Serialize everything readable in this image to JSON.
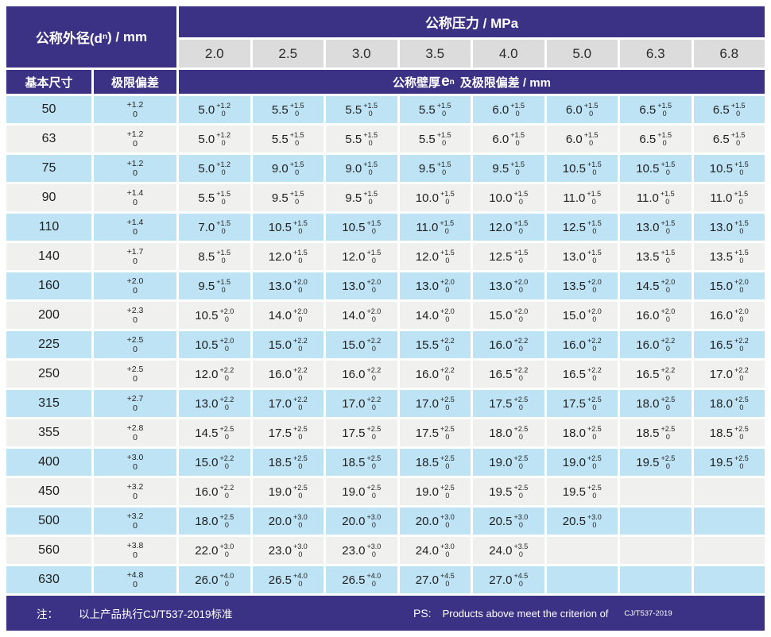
{
  "colors": {
    "header_purple": "#3b3286",
    "row_blue": "#bee3f5",
    "row_gray": "#f0f0ef",
    "pressure_chip_gray": "#dcdcdc",
    "text_dark": "#1f1f1f",
    "text_white": "#ffffff"
  },
  "table": {
    "header": {
      "od_prefix": "公称外径(d",
      "od_sub": "n",
      "od_suffix": ") / mm",
      "pressure_label": "公称压力 / MPa",
      "pressures": [
        "2.0",
        "2.5",
        "3.0",
        "3.5",
        "4.0",
        "5.0",
        "6.3",
        "6.8"
      ],
      "basic_size_label": "基本尺寸",
      "tolerance_label": "极限偏差",
      "wall_prefix": "公称壁厚",
      "wall_e": "e",
      "wall_sub": "n",
      "wall_suffix": "及极限偏差 / mm"
    },
    "rows": [
      {
        "dn": "50",
        "tol_plus": "+1.2",
        "tol_minus": "0",
        "cells": [
          {
            "v": "5.0",
            "p": "+1.2",
            "m": "0"
          },
          {
            "v": "5.5",
            "p": "+1.5",
            "m": "0"
          },
          {
            "v": "5.5",
            "p": "+1.5",
            "m": "0"
          },
          {
            "v": "5.5",
            "p": "+1.5",
            "m": "0"
          },
          {
            "v": "6.0",
            "p": "+1.5",
            "m": "0"
          },
          {
            "v": "6.0",
            "p": "+1.5",
            "m": "0"
          },
          {
            "v": "6.5",
            "p": "+1.5",
            "m": "0"
          },
          {
            "v": "6.5",
            "p": "+1.5",
            "m": "0"
          }
        ]
      },
      {
        "dn": "63",
        "tol_plus": "+1.2",
        "tol_minus": "0",
        "cells": [
          {
            "v": "5.0",
            "p": "+1.2",
            "m": "0"
          },
          {
            "v": "5.5",
            "p": "+1.5",
            "m": "0"
          },
          {
            "v": "5.5",
            "p": "+1.5",
            "m": "0"
          },
          {
            "v": "5.5",
            "p": "+1.5",
            "m": "0"
          },
          {
            "v": "6.0",
            "p": "+1.5",
            "m": "0"
          },
          {
            "v": "6.0",
            "p": "+1.5",
            "m": "0"
          },
          {
            "v": "6.5",
            "p": "+1.5",
            "m": "0"
          },
          {
            "v": "6.5",
            "p": "+1.5",
            "m": "0"
          }
        ]
      },
      {
        "dn": "75",
        "tol_plus": "+1.2",
        "tol_minus": "0",
        "cells": [
          {
            "v": "5.0",
            "p": "+1.2",
            "m": "0"
          },
          {
            "v": "9.0",
            "p": "+1.5",
            "m": "0"
          },
          {
            "v": "9.0",
            "p": "+1.5",
            "m": "0"
          },
          {
            "v": "9.5",
            "p": "+1.5",
            "m": "0"
          },
          {
            "v": "9.5",
            "p": "+1.5",
            "m": "0"
          },
          {
            "v": "10.5",
            "p": "+1.5",
            "m": "0"
          },
          {
            "v": "10.5",
            "p": "+1.5",
            "m": "0"
          },
          {
            "v": "10.5",
            "p": "+1.5",
            "m": "0"
          }
        ]
      },
      {
        "dn": "90",
        "tol_plus": "+1.4",
        "tol_minus": "0",
        "cells": [
          {
            "v": "5.5",
            "p": "+1.5",
            "m": "0"
          },
          {
            "v": "9.5",
            "p": "+1.5",
            "m": "0"
          },
          {
            "v": "9.5",
            "p": "+1.5",
            "m": "0"
          },
          {
            "v": "10.0",
            "p": "+1.5",
            "m": "0"
          },
          {
            "v": "10.0",
            "p": "+1.5",
            "m": "0"
          },
          {
            "v": "11.0",
            "p": "+1.5",
            "m": "0"
          },
          {
            "v": "11.0",
            "p": "+1.5",
            "m": "0"
          },
          {
            "v": "11.0",
            "p": "+1.5",
            "m": "0"
          }
        ]
      },
      {
        "dn": "110",
        "tol_plus": "+1.4",
        "tol_minus": "0",
        "cells": [
          {
            "v": "7.0",
            "p": "+1.5",
            "m": "0"
          },
          {
            "v": "10.5",
            "p": "+1.5",
            "m": "0"
          },
          {
            "v": "10.5",
            "p": "+1.5",
            "m": "0"
          },
          {
            "v": "11.0",
            "p": "+1.5",
            "m": "0"
          },
          {
            "v": "12.0",
            "p": "+1.5",
            "m": "0"
          },
          {
            "v": "12.5",
            "p": "+1.5",
            "m": "0"
          },
          {
            "v": "13.0",
            "p": "+1.5",
            "m": "0"
          },
          {
            "v": "13.0",
            "p": "+1.5",
            "m": "0"
          }
        ]
      },
      {
        "dn": "140",
        "tol_plus": "+1.7",
        "tol_minus": "0",
        "cells": [
          {
            "v": "8.5",
            "p": "+1.5",
            "m": "0"
          },
          {
            "v": "12.0",
            "p": "+1.5",
            "m": "0"
          },
          {
            "v": "12.0",
            "p": "+1.5",
            "m": "0"
          },
          {
            "v": "12.0",
            "p": "+1.5",
            "m": "0"
          },
          {
            "v": "12.5",
            "p": "+1.5",
            "m": "0"
          },
          {
            "v": "13.0",
            "p": "+1.5",
            "m": "0"
          },
          {
            "v": "13.5",
            "p": "+1.5",
            "m": "0"
          },
          {
            "v": "13.5",
            "p": "+1.5",
            "m": "0"
          }
        ]
      },
      {
        "dn": "160",
        "tol_plus": "+2.0",
        "tol_minus": "0",
        "cells": [
          {
            "v": "9.5",
            "p": "+1.5",
            "m": "0"
          },
          {
            "v": "13.0",
            "p": "+2.0",
            "m": "0"
          },
          {
            "v": "13.0",
            "p": "+2.0",
            "m": "0"
          },
          {
            "v": "13.0",
            "p": "+2.0",
            "m": "0"
          },
          {
            "v": "13.0",
            "p": "+2.0",
            "m": "0"
          },
          {
            "v": "13.5",
            "p": "+2.0",
            "m": "0"
          },
          {
            "v": "14.5",
            "p": "+2.0",
            "m": "0"
          },
          {
            "v": "15.0",
            "p": "+2.0",
            "m": "0"
          }
        ]
      },
      {
        "dn": "200",
        "tol_plus": "+2.3",
        "tol_minus": "0",
        "cells": [
          {
            "v": "10.5",
            "p": "+2.0",
            "m": "0"
          },
          {
            "v": "14.0",
            "p": "+2.0",
            "m": "0"
          },
          {
            "v": "14.0",
            "p": "+2.0",
            "m": "0"
          },
          {
            "v": "14.0",
            "p": "+2.0",
            "m": "0"
          },
          {
            "v": "15.0",
            "p": "+2.0",
            "m": "0"
          },
          {
            "v": "15.0",
            "p": "+2.0",
            "m": "0"
          },
          {
            "v": "16.0",
            "p": "+2.0",
            "m": "0"
          },
          {
            "v": "16.0",
            "p": "+2.0",
            "m": "0"
          }
        ]
      },
      {
        "dn": "225",
        "tol_plus": "+2.5",
        "tol_minus": "0",
        "cells": [
          {
            "v": "10.5",
            "p": "+2.0",
            "m": "0"
          },
          {
            "v": "15.0",
            "p": "+2.2",
            "m": "0"
          },
          {
            "v": "15.0",
            "p": "+2.2",
            "m": "0"
          },
          {
            "v": "15.5",
            "p": "+2.2",
            "m": "0"
          },
          {
            "v": "16.0",
            "p": "+2.2",
            "m": "0"
          },
          {
            "v": "16.0",
            "p": "+2.2",
            "m": "0"
          },
          {
            "v": "16.0",
            "p": "+2.2",
            "m": "0"
          },
          {
            "v": "16.5",
            "p": "+2.2",
            "m": "0"
          }
        ]
      },
      {
        "dn": "250",
        "tol_plus": "+2.5",
        "tol_minus": "0",
        "cells": [
          {
            "v": "12.0",
            "p": "+2.2",
            "m": "0"
          },
          {
            "v": "16.0",
            "p": "+2.2",
            "m": "0"
          },
          {
            "v": "16.0",
            "p": "+2.2",
            "m": "0"
          },
          {
            "v": "16.0",
            "p": "+2.2",
            "m": "0"
          },
          {
            "v": "16.5",
            "p": "+2.2",
            "m": "0"
          },
          {
            "v": "16.5",
            "p": "+2.2",
            "m": "0"
          },
          {
            "v": "16.5",
            "p": "+2.2",
            "m": "0"
          },
          {
            "v": "17.0",
            "p": "+2.2",
            "m": "0"
          }
        ]
      },
      {
        "dn": "315",
        "tol_plus": "+2.7",
        "tol_minus": "0",
        "cells": [
          {
            "v": "13.0",
            "p": "+2.2",
            "m": "0"
          },
          {
            "v": "17.0",
            "p": "+2.2",
            "m": "0"
          },
          {
            "v": "17.0",
            "p": "+2.2",
            "m": "0"
          },
          {
            "v": "17.0",
            "p": "+2.5",
            "m": "0"
          },
          {
            "v": "17.5",
            "p": "+2.5",
            "m": "0"
          },
          {
            "v": "17.5",
            "p": "+2.5",
            "m": "0"
          },
          {
            "v": "18.0",
            "p": "+2.5",
            "m": "0"
          },
          {
            "v": "18.0",
            "p": "+2.5",
            "m": "0"
          }
        ]
      },
      {
        "dn": "355",
        "tol_plus": "+2.8",
        "tol_minus": "0",
        "cells": [
          {
            "v": "14.5",
            "p": "+2.5",
            "m": "0"
          },
          {
            "v": "17.5",
            "p": "+2.5",
            "m": "0"
          },
          {
            "v": "17.5",
            "p": "+2.5",
            "m": "0"
          },
          {
            "v": "17.5",
            "p": "+2.5",
            "m": "0"
          },
          {
            "v": "18.0",
            "p": "+2.5",
            "m": "0"
          },
          {
            "v": "18.0",
            "p": "+2.5",
            "m": "0"
          },
          {
            "v": "18.5",
            "p": "+2.5",
            "m": "0"
          },
          {
            "v": "18.5",
            "p": "+2.5",
            "m": "0"
          }
        ]
      },
      {
        "dn": "400",
        "tol_plus": "+3.0",
        "tol_minus": "0",
        "cells": [
          {
            "v": "15.0",
            "p": "+2.2",
            "m": "0"
          },
          {
            "v": "18.5",
            "p": "+2.5",
            "m": "0"
          },
          {
            "v": "18.5",
            "p": "+2.5",
            "m": "0"
          },
          {
            "v": "18.5",
            "p": "+2.5",
            "m": "0"
          },
          {
            "v": "19.0",
            "p": "+2.5",
            "m": "0"
          },
          {
            "v": "19.0",
            "p": "+2.5",
            "m": "0"
          },
          {
            "v": "19.5",
            "p": "+2.5",
            "m": "0"
          },
          {
            "v": "19.5",
            "p": "+2.5",
            "m": "0"
          }
        ]
      },
      {
        "dn": "450",
        "tol_plus": "+3.2",
        "tol_minus": "0",
        "cells": [
          {
            "v": "16.0",
            "p": "+2.2",
            "m": "0"
          },
          {
            "v": "19.0",
            "p": "+2.5",
            "m": "0"
          },
          {
            "v": "19.0",
            "p": "+2.5",
            "m": "0"
          },
          {
            "v": "19.0",
            "p": "+2.5",
            "m": "0"
          },
          {
            "v": "19.5",
            "p": "+2.5",
            "m": "0"
          },
          {
            "v": "19.5",
            "p": "+2.5",
            "m": "0"
          },
          null,
          null
        ]
      },
      {
        "dn": "500",
        "tol_plus": "+3.2",
        "tol_minus": "0",
        "cells": [
          {
            "v": "18.0",
            "p": "+2.5",
            "m": "0"
          },
          {
            "v": "20.0",
            "p": "+3.0",
            "m": "0"
          },
          {
            "v": "20.0",
            "p": "+3.0",
            "m": "0"
          },
          {
            "v": "20.0",
            "p": "+3.0",
            "m": "0"
          },
          {
            "v": "20.5",
            "p": "+3.0",
            "m": "0"
          },
          {
            "v": "20.5",
            "p": "+3.0",
            "m": "0"
          },
          null,
          null
        ]
      },
      {
        "dn": "560",
        "tol_plus": "+3.8",
        "tol_minus": "0",
        "cells": [
          {
            "v": "22.0",
            "p": "+3.0",
            "m": "0"
          },
          {
            "v": "23.0",
            "p": "+3.0",
            "m": "0"
          },
          {
            "v": "23.0",
            "p": "+3.0",
            "m": "0"
          },
          {
            "v": "24.0",
            "p": "+3.0",
            "m": "0"
          },
          {
            "v": "24.0",
            "p": "+3.5",
            "m": "0"
          },
          null,
          null,
          null
        ]
      },
      {
        "dn": "630",
        "tol_plus": "+4.8",
        "tol_minus": "0",
        "cells": [
          {
            "v": "26.0",
            "p": "+4.0",
            "m": "0"
          },
          {
            "v": "26.5",
            "p": "+4.0",
            "m": "0"
          },
          {
            "v": "26.5",
            "p": "+4.0",
            "m": "0"
          },
          {
            "v": "27.0",
            "p": "+4.5",
            "m": "0"
          },
          {
            "v": "27.0",
            "p": "+4.5",
            "m": "0"
          },
          null,
          null,
          null
        ]
      }
    ]
  },
  "footer": {
    "note_label": "注：",
    "note_text": "以上产品执行CJ/T537-2019标准",
    "ps_label": "PS:",
    "ps_text": "Products above meet the criterion of",
    "ps_standard": "CJ/T537-2019"
  }
}
